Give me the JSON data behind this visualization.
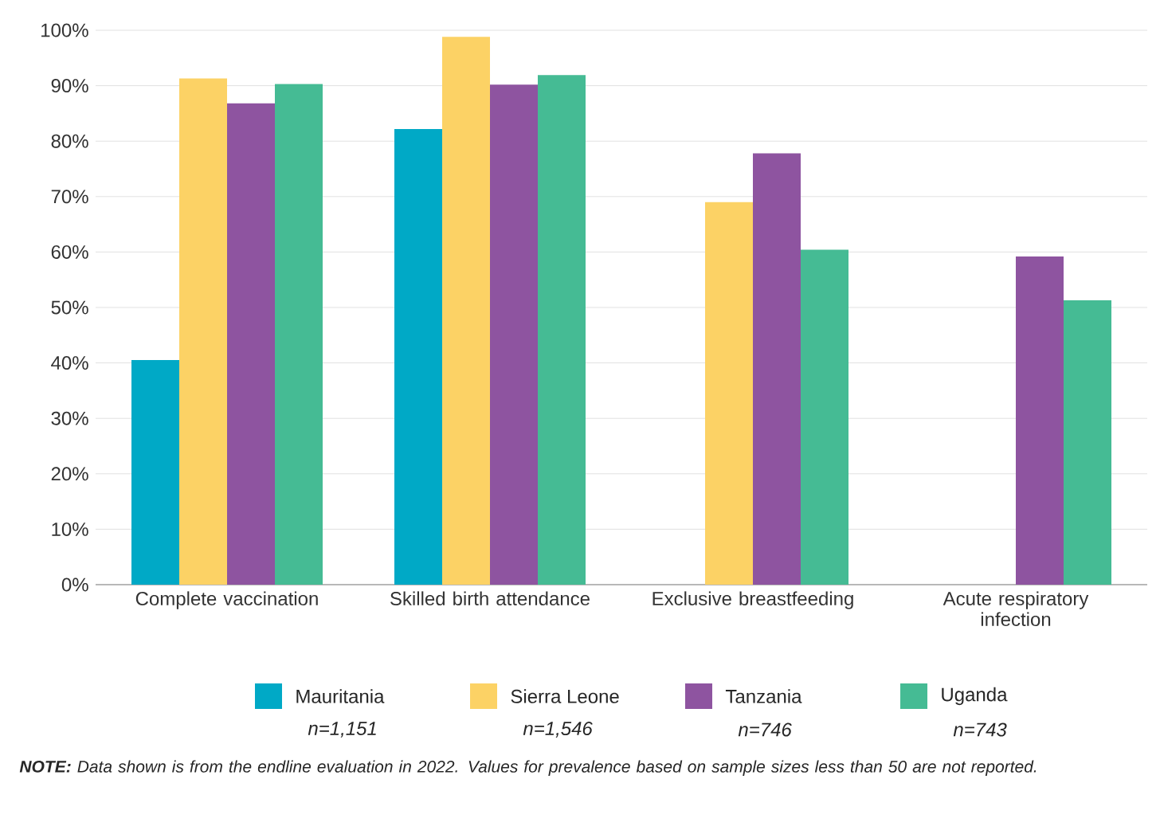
{
  "chart_data": {
    "type": "bar",
    "categories": [
      "Complete vaccination",
      "Skilled birth attendance",
      "Exclusive breastfeeding",
      "Acute respiratory infection"
    ],
    "series": [
      {
        "name": "Mauritania",
        "color": "#00a9c6",
        "values": [
          40.5,
          82.2,
          null,
          null
        ]
      },
      {
        "name": "Sierra Leone",
        "color": "#fcd265",
        "values": [
          91.3,
          98.8,
          69,
          null
        ]
      },
      {
        "name": "Tanzania",
        "color": "#8e54a0",
        "values": [
          86.8,
          90.2,
          77.8,
          59.2
        ]
      },
      {
        "name": "Uganda",
        "color": "#45bb94",
        "values": [
          90.3,
          91.9,
          60.4,
          51.3
        ]
      }
    ],
    "ylim": [
      0,
      100
    ],
    "yticks": [
      {
        "value": 0,
        "label": "0%"
      },
      {
        "value": 10,
        "label": "10%"
      },
      {
        "value": 20,
        "label": "20%"
      },
      {
        "value": 30,
        "label": "30%"
      },
      {
        "value": 40,
        "label": "40%"
      },
      {
        "value": 50,
        "label": "50%"
      },
      {
        "value": 60,
        "label": "60%"
      },
      {
        "value": 70,
        "label": "70%"
      },
      {
        "value": 80,
        "label": "80%"
      },
      {
        "value": 90,
        "label": "90%"
      },
      {
        "value": 100,
        "label": "100%"
      }
    ],
    "grid": "y",
    "legend": "bottom",
    "annotations": [
      "n=1,151",
      "n=1,546",
      "n=746",
      "n=743",
      "**NOTE:** Data shown is from the endline evaluation in 2022. Values for prevalence based on sample sizes less than 50 are not reported."
    ]
  }
}
